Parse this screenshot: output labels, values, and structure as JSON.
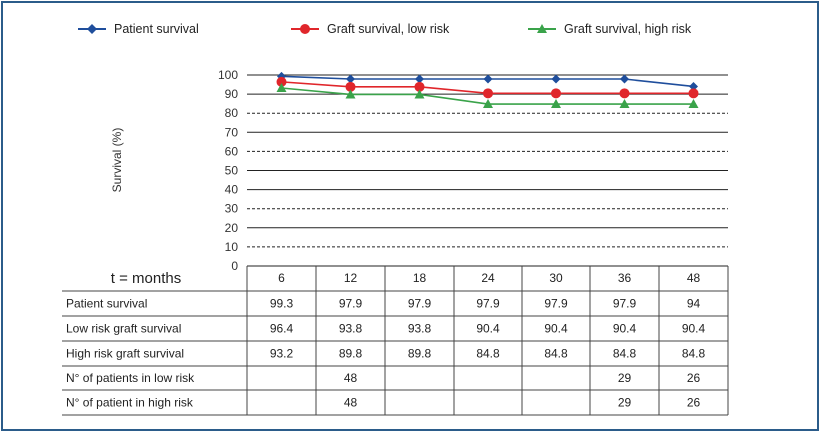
{
  "chart_data": {
    "type": "line",
    "ylabel": "Survival (%)",
    "ylim": [
      0,
      100
    ],
    "y_ticks": [
      0,
      10,
      20,
      30,
      40,
      50,
      60,
      70,
      80,
      90,
      100
    ],
    "x_title": "t = months",
    "categories": [
      "6",
      "12",
      "18",
      "24",
      "30",
      "36",
      "48"
    ],
    "legend_position": "top",
    "series": [
      {
        "name": "Patient survival",
        "values": [
          99.3,
          97.9,
          97.9,
          97.9,
          97.9,
          97.9,
          94
        ],
        "color": "#1f4e9c",
        "marker": "diamond"
      },
      {
        "name": "Graft survival, low risk",
        "values": [
          96.4,
          93.8,
          93.8,
          90.4,
          90.4,
          90.4,
          90.4
        ],
        "color": "#e0262b",
        "marker": "circle"
      },
      {
        "name": "Graft survival, high risk",
        "values": [
          93.2,
          89.8,
          89.8,
          84.8,
          84.8,
          84.8,
          84.8
        ],
        "color": "#3aa34a",
        "marker": "triangle"
      }
    ],
    "table": {
      "rows": [
        {
          "label": "Patient survival",
          "cells": [
            "99.3",
            "97.9",
            "97.9",
            "97.9",
            "97.9",
            "97.9",
            "94"
          ]
        },
        {
          "label": "Low risk graft survival",
          "cells": [
            "96.4",
            "93.8",
            "93.8",
            "90.4",
            "90.4",
            "90.4",
            "90.4"
          ]
        },
        {
          "label": "High risk graft survival",
          "cells": [
            "93.2",
            "89.8",
            "89.8",
            "84.8",
            "84.8",
            "84.8",
            "84.8"
          ]
        },
        {
          "label": "N° of patients in low risk",
          "cells": [
            "",
            "48",
            "",
            "",
            "",
            "29",
            "26"
          ]
        },
        {
          "label": "N° of patient in high risk",
          "cells": [
            "",
            "48",
            "",
            "",
            "",
            "29",
            "26"
          ]
        }
      ]
    },
    "grid": true
  }
}
